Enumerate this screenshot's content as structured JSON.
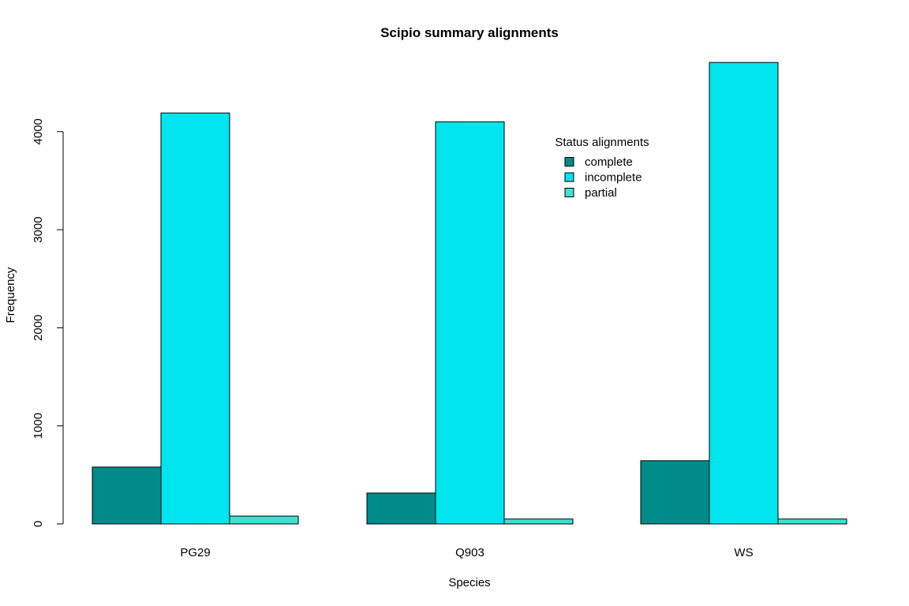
{
  "chart_data": {
    "type": "bar",
    "title": "Scipio summary alignments",
    "xlabel": "Species",
    "ylabel": "Frequency",
    "categories": [
      "PG29",
      "Q903",
      "WS"
    ],
    "series": [
      {
        "name": "complete",
        "color": "#008b8b",
        "values": [
          580,
          315,
          645
        ]
      },
      {
        "name": "incomplete",
        "color": "#00e5ee",
        "values": [
          4190,
          4100,
          4705
        ]
      },
      {
        "name": "partial",
        "color": "#40e0d0",
        "values": [
          80,
          50,
          50
        ]
      }
    ],
    "ylim": [
      0,
      4800
    ],
    "yticks": [
      0,
      1000,
      2000,
      3000,
      4000
    ],
    "legend": {
      "title": "Status alignments",
      "position": "top-center-right"
    },
    "grid": false
  }
}
